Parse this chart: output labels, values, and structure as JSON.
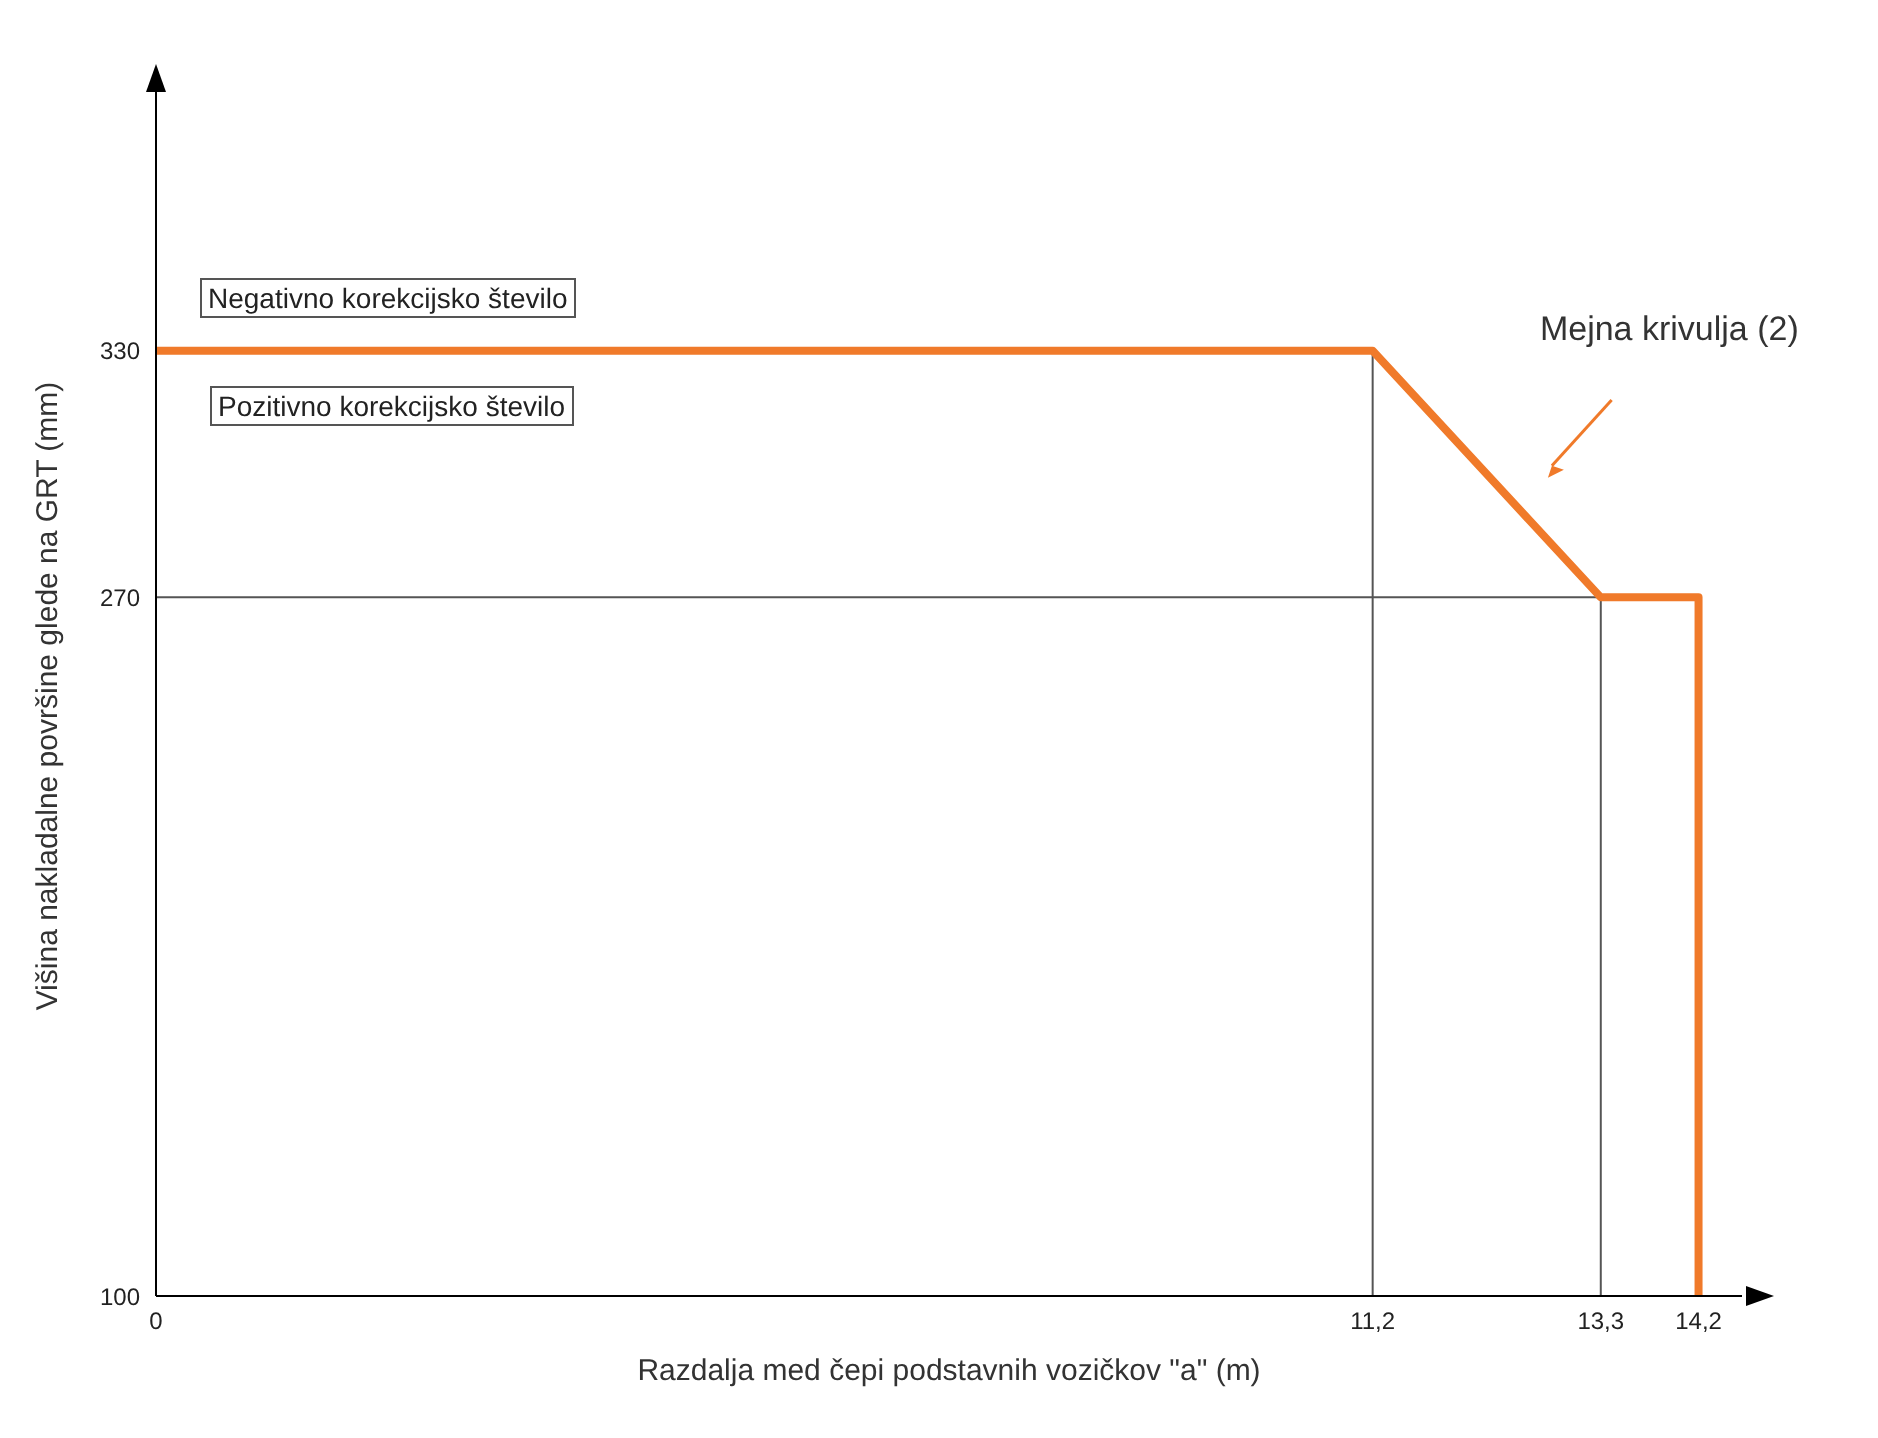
{
  "chart_data": {
    "type": "line",
    "xlabel": "Razdalja med čepi podstavnih vozičkov \"a\" (m)",
    "ylabel": "Višina nakladalne površine glede na GRT (mm)",
    "x": [
      0,
      11.2,
      13.3,
      14.2,
      14.2
    ],
    "series": [
      {
        "name": "Mejna krivulja (2)",
        "color": "#f07a2a",
        "values": [
          330,
          330,
          270,
          270,
          100
        ]
      }
    ],
    "xlim": [
      0,
      14.6
    ],
    "ylim": [
      100,
      392
    ],
    "xticks": [
      0,
      {
        "value": 11.2,
        "label": "11,2"
      },
      {
        "value": 13.3,
        "label": "13,3"
      },
      {
        "value": 14.2,
        "label": "14,2"
      }
    ],
    "yticks": [
      100,
      270,
      330
    ],
    "ref_lines": [
      {
        "axis": "x",
        "value": 11.2,
        "color": "#555555"
      },
      {
        "axis": "x",
        "value": 13.3,
        "color": "#555555"
      },
      {
        "axis": "y",
        "value": 270,
        "color": "#555555"
      }
    ],
    "annotations": [
      "Negativno korekcijsko število",
      "Pozitivno korekcijsko število"
    ],
    "grid": false,
    "legend": false,
    "marker": "none",
    "line_style": "solid"
  }
}
